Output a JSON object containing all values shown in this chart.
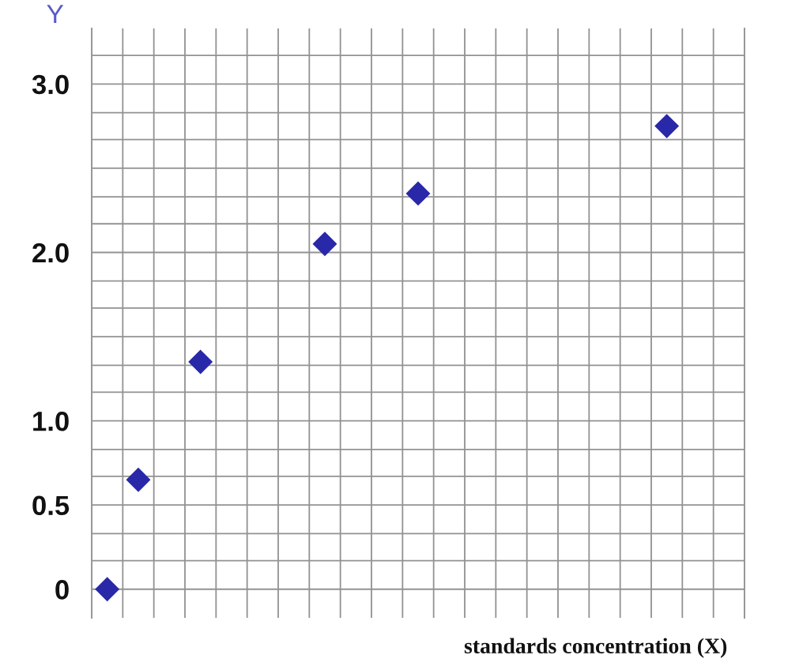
{
  "chart_data": {
    "type": "scatter",
    "xlabel": "standards concentration (X)",
    "ylabel": "Y",
    "categories": [
      null,
      null,
      null,
      null,
      null,
      null,
      null,
      null,
      null,
      null,
      null,
      null,
      null,
      null,
      null,
      null,
      null,
      null,
      null,
      null,
      null
    ],
    "values": [
      0,
      0.65,
      null,
      1.35,
      null,
      null,
      null,
      2.05,
      null,
      null,
      2.35,
      null,
      null,
      null,
      null,
      null,
      null,
      null,
      2.75,
      null,
      null
    ],
    "color": "#2828a8",
    "marker": "diamond",
    "ylim": [
      -0.17,
      3.33
    ],
    "yticks": [
      {
        "value": 0,
        "label": "0"
      },
      {
        "value": 0.17,
        "label": null
      },
      {
        "value": 0.33,
        "label": null
      },
      0.5,
      {
        "value": 0.67,
        "label": null
      },
      {
        "value": 0.83,
        "label": null
      },
      {
        "value": 1,
        "label": "1.0"
      },
      {
        "value": 1.17,
        "label": null
      },
      {
        "value": 1.33,
        "label": null
      },
      {
        "value": 1.5,
        "label": null
      },
      {
        "value": 1.67,
        "label": null
      },
      {
        "value": 1.83,
        "label": null
      },
      {
        "value": 2,
        "label": "2.0"
      },
      {
        "value": 2.17,
        "label": null
      },
      {
        "value": 2.33,
        "label": null
      },
      {
        "value": 2.5,
        "label": null
      },
      {
        "value": 2.67,
        "label": null
      },
      {
        "value": 2.83,
        "label": null
      },
      {
        "value": 3,
        "label": "3.0"
      },
      {
        "value": 3.17,
        "label": null
      }
    ],
    "grid": true,
    "tick_labels": "y"
  }
}
